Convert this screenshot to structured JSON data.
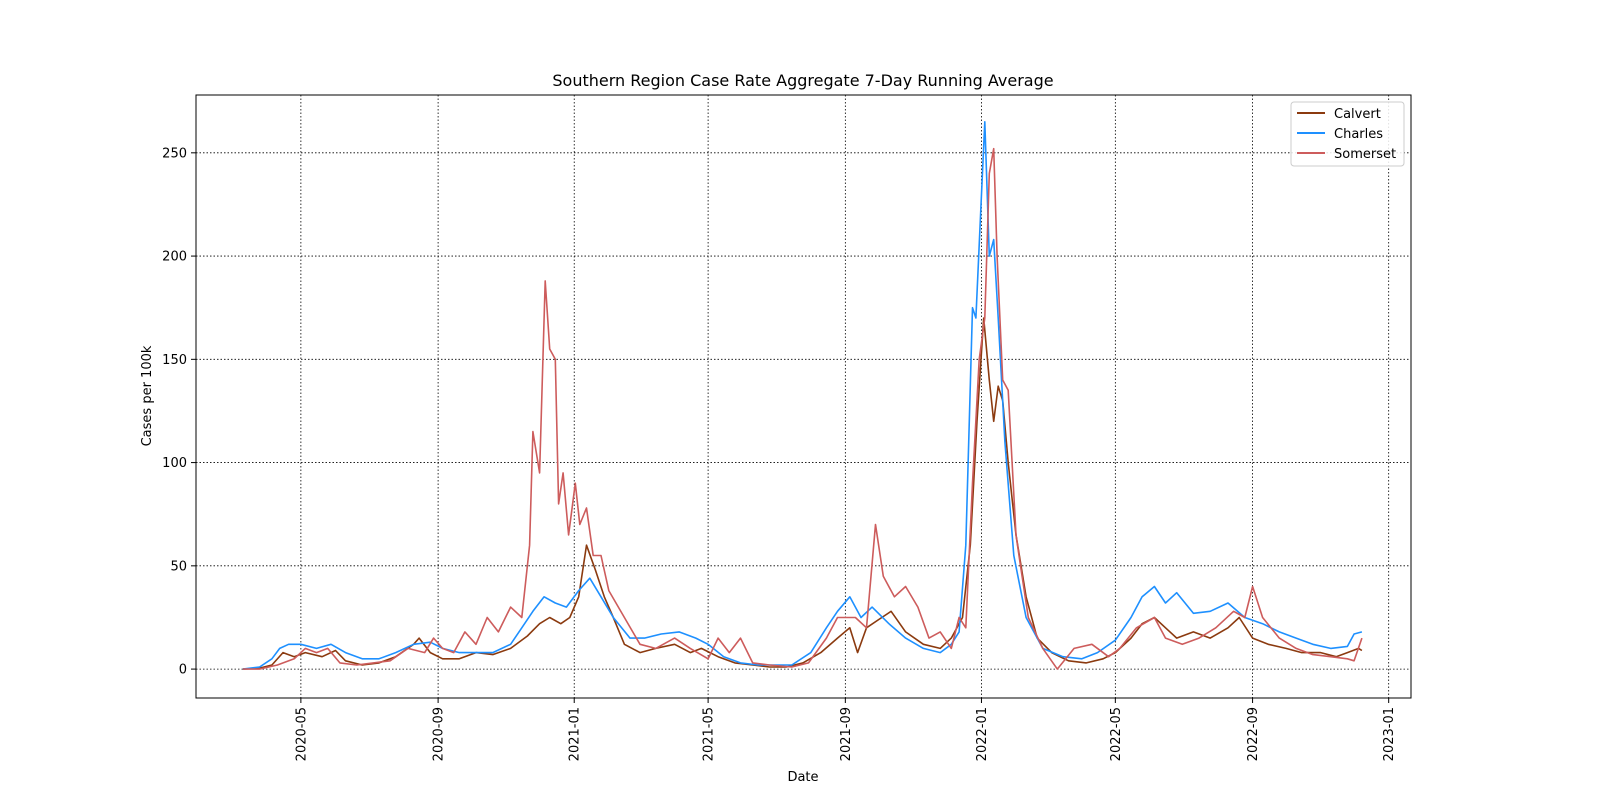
{
  "chart_data": {
    "type": "line",
    "title": "Southern Region Case Rate Aggregate 7-Day Running Average",
    "xlabel": "Date",
    "ylabel": "Cases per 100k",
    "xlim": [
      "2020-01-28",
      "2023-01-21"
    ],
    "ylim": [
      -14,
      278
    ],
    "x_ticks": [
      "2020-05",
      "2020-09",
      "2021-01",
      "2021-05",
      "2021-09",
      "2022-01",
      "2022-05",
      "2022-09",
      "2023-01"
    ],
    "y_ticks": [
      0,
      50,
      100,
      150,
      200,
      250
    ],
    "grid": true,
    "legend_position": "top-right",
    "series": [
      {
        "name": "Calvert",
        "color": "#8B3A0F",
        "points": [
          [
            "2020-03-10",
            0
          ],
          [
            "2020-03-25",
            0.5
          ],
          [
            "2020-04-05",
            2
          ],
          [
            "2020-04-15",
            8
          ],
          [
            "2020-04-25",
            6
          ],
          [
            "2020-05-05",
            8
          ],
          [
            "2020-05-20",
            6
          ],
          [
            "2020-06-01",
            9
          ],
          [
            "2020-06-10",
            4
          ],
          [
            "2020-06-25",
            2
          ],
          [
            "2020-07-10",
            3
          ],
          [
            "2020-07-25",
            6
          ],
          [
            "2020-08-10",
            12
          ],
          [
            "2020-08-15",
            15
          ],
          [
            "2020-08-25",
            8
          ],
          [
            "2020-09-05",
            5
          ],
          [
            "2020-09-20",
            5
          ],
          [
            "2020-10-05",
            8
          ],
          [
            "2020-10-20",
            7
          ],
          [
            "2020-11-05",
            10
          ],
          [
            "2020-11-20",
            16
          ],
          [
            "2020-12-01",
            22
          ],
          [
            "2020-12-10",
            25
          ],
          [
            "2020-12-20",
            22
          ],
          [
            "2020-12-28",
            25
          ],
          [
            "2021-01-05",
            35
          ],
          [
            "2021-01-12",
            60
          ],
          [
            "2021-01-20",
            48
          ],
          [
            "2021-01-28",
            35
          ],
          [
            "2021-02-05",
            25
          ],
          [
            "2021-02-15",
            12
          ],
          [
            "2021-03-01",
            8
          ],
          [
            "2021-03-15",
            10
          ],
          [
            "2021-04-01",
            12
          ],
          [
            "2021-04-15",
            8
          ],
          [
            "2021-04-25",
            10
          ],
          [
            "2021-05-10",
            6
          ],
          [
            "2021-05-25",
            3
          ],
          [
            "2021-06-10",
            2
          ],
          [
            "2021-06-25",
            1
          ],
          [
            "2021-07-10",
            1
          ],
          [
            "2021-07-25",
            3
          ],
          [
            "2021-08-10",
            8
          ],
          [
            "2021-08-25",
            15
          ],
          [
            "2021-09-05",
            20
          ],
          [
            "2021-09-12",
            8
          ],
          [
            "2021-09-20",
            20
          ],
          [
            "2021-10-01",
            24
          ],
          [
            "2021-10-12",
            28
          ],
          [
            "2021-10-25",
            18
          ],
          [
            "2021-11-10",
            12
          ],
          [
            "2021-11-25",
            10
          ],
          [
            "2021-12-05",
            15
          ],
          [
            "2021-12-15",
            25
          ],
          [
            "2021-12-22",
            60
          ],
          [
            "2021-12-28",
            120
          ],
          [
            "2022-01-03",
            170
          ],
          [
            "2022-01-08",
            140
          ],
          [
            "2022-01-12",
            120
          ],
          [
            "2022-01-16",
            137
          ],
          [
            "2022-01-20",
            130
          ],
          [
            "2022-01-25",
            100
          ],
          [
            "2022-02-01",
            65
          ],
          [
            "2022-02-10",
            35
          ],
          [
            "2022-02-20",
            15
          ],
          [
            "2022-03-05",
            8
          ],
          [
            "2022-03-20",
            4
          ],
          [
            "2022-04-05",
            3
          ],
          [
            "2022-04-20",
            5
          ],
          [
            "2022-05-01",
            8
          ],
          [
            "2022-05-15",
            15
          ],
          [
            "2022-05-25",
            22
          ],
          [
            "2022-06-05",
            25
          ],
          [
            "2022-06-15",
            20
          ],
          [
            "2022-06-25",
            15
          ],
          [
            "2022-07-10",
            18
          ],
          [
            "2022-07-25",
            15
          ],
          [
            "2022-08-10",
            20
          ],
          [
            "2022-08-20",
            25
          ],
          [
            "2022-09-01",
            15
          ],
          [
            "2022-09-15",
            12
          ],
          [
            "2022-10-01",
            10
          ],
          [
            "2022-10-15",
            8
          ],
          [
            "2022-11-01",
            8
          ],
          [
            "2022-11-15",
            6
          ],
          [
            "2022-11-25",
            8
          ],
          [
            "2022-12-05",
            10
          ],
          [
            "2022-12-08",
            9
          ]
        ]
      },
      {
        "name": "Charles",
        "color": "#1E90FF",
        "points": [
          [
            "2020-03-10",
            0
          ],
          [
            "2020-03-25",
            1
          ],
          [
            "2020-04-05",
            5
          ],
          [
            "2020-04-12",
            10
          ],
          [
            "2020-04-20",
            12
          ],
          [
            "2020-05-01",
            12
          ],
          [
            "2020-05-15",
            10
          ],
          [
            "2020-05-28",
            12
          ],
          [
            "2020-06-10",
            8
          ],
          [
            "2020-06-25",
            5
          ],
          [
            "2020-07-10",
            5
          ],
          [
            "2020-07-25",
            8
          ],
          [
            "2020-08-10",
            12
          ],
          [
            "2020-08-25",
            13
          ],
          [
            "2020-09-05",
            10
          ],
          [
            "2020-09-20",
            8
          ],
          [
            "2020-10-05",
            8
          ],
          [
            "2020-10-20",
            8
          ],
          [
            "2020-11-05",
            12
          ],
          [
            "2020-11-15",
            20
          ],
          [
            "2020-11-25",
            28
          ],
          [
            "2020-12-05",
            35
          ],
          [
            "2020-12-15",
            32
          ],
          [
            "2020-12-25",
            30
          ],
          [
            "2021-01-05",
            38
          ],
          [
            "2021-01-15",
            44
          ],
          [
            "2021-01-25",
            35
          ],
          [
            "2021-02-05",
            25
          ],
          [
            "2021-02-20",
            15
          ],
          [
            "2021-03-05",
            15
          ],
          [
            "2021-03-20",
            17
          ],
          [
            "2021-04-05",
            18
          ],
          [
            "2021-04-20",
            15
          ],
          [
            "2021-05-01",
            12
          ],
          [
            "2021-05-15",
            6
          ],
          [
            "2021-05-30",
            3
          ],
          [
            "2021-06-15",
            2
          ],
          [
            "2021-07-01",
            2
          ],
          [
            "2021-07-15",
            2
          ],
          [
            "2021-08-01",
            8
          ],
          [
            "2021-08-15",
            20
          ],
          [
            "2021-08-25",
            28
          ],
          [
            "2021-09-05",
            35
          ],
          [
            "2021-09-15",
            25
          ],
          [
            "2021-09-25",
            30
          ],
          [
            "2021-10-10",
            22
          ],
          [
            "2021-10-25",
            15
          ],
          [
            "2021-11-10",
            10
          ],
          [
            "2021-11-25",
            8
          ],
          [
            "2021-12-05",
            12
          ],
          [
            "2021-12-12",
            18
          ],
          [
            "2021-12-18",
            60
          ],
          [
            "2021-12-24",
            175
          ],
          [
            "2021-12-27",
            170
          ],
          [
            "2022-01-01",
            230
          ],
          [
            "2022-01-04",
            265
          ],
          [
            "2022-01-08",
            200
          ],
          [
            "2022-01-12",
            208
          ],
          [
            "2022-01-16",
            170
          ],
          [
            "2022-01-22",
            110
          ],
          [
            "2022-01-30",
            55
          ],
          [
            "2022-02-10",
            25
          ],
          [
            "2022-02-25",
            10
          ],
          [
            "2022-03-15",
            6
          ],
          [
            "2022-04-01",
            5
          ],
          [
            "2022-04-15",
            8
          ],
          [
            "2022-05-01",
            14
          ],
          [
            "2022-05-15",
            25
          ],
          [
            "2022-05-25",
            35
          ],
          [
            "2022-06-05",
            40
          ],
          [
            "2022-06-15",
            32
          ],
          [
            "2022-06-25",
            37
          ],
          [
            "2022-07-10",
            27
          ],
          [
            "2022-07-25",
            28
          ],
          [
            "2022-08-10",
            32
          ],
          [
            "2022-08-25",
            25
          ],
          [
            "2022-09-10",
            22
          ],
          [
            "2022-09-25",
            18
          ],
          [
            "2022-10-10",
            15
          ],
          [
            "2022-10-25",
            12
          ],
          [
            "2022-11-10",
            10
          ],
          [
            "2022-11-25",
            11
          ],
          [
            "2022-12-01",
            17
          ],
          [
            "2022-12-08",
            18
          ]
        ]
      },
      {
        "name": "Somerset",
        "color": "#CD5C5C",
        "points": [
          [
            "2020-03-10",
            0
          ],
          [
            "2020-03-25",
            0
          ],
          [
            "2020-04-10",
            2
          ],
          [
            "2020-04-25",
            5
          ],
          [
            "2020-05-05",
            10
          ],
          [
            "2020-05-15",
            8
          ],
          [
            "2020-05-25",
            10
          ],
          [
            "2020-06-05",
            3
          ],
          [
            "2020-06-20",
            2
          ],
          [
            "2020-07-05",
            3
          ],
          [
            "2020-07-20",
            4
          ],
          [
            "2020-08-05",
            10
          ],
          [
            "2020-08-20",
            8
          ],
          [
            "2020-08-28",
            15
          ],
          [
            "2020-09-05",
            10
          ],
          [
            "2020-09-15",
            8
          ],
          [
            "2020-09-25",
            18
          ],
          [
            "2020-10-05",
            12
          ],
          [
            "2020-10-15",
            25
          ],
          [
            "2020-10-25",
            18
          ],
          [
            "2020-11-05",
            30
          ],
          [
            "2020-11-15",
            25
          ],
          [
            "2020-11-22",
            60
          ],
          [
            "2020-11-25",
            115
          ],
          [
            "2020-12-01",
            95
          ],
          [
            "2020-12-06",
            188
          ],
          [
            "2020-12-10",
            155
          ],
          [
            "2020-12-15",
            150
          ],
          [
            "2020-12-18",
            80
          ],
          [
            "2020-12-22",
            95
          ],
          [
            "2020-12-27",
            65
          ],
          [
            "2021-01-02",
            90
          ],
          [
            "2021-01-06",
            70
          ],
          [
            "2021-01-12",
            78
          ],
          [
            "2021-01-18",
            55
          ],
          [
            "2021-01-25",
            55
          ],
          [
            "2021-02-01",
            38
          ],
          [
            "2021-02-15",
            25
          ],
          [
            "2021-03-01",
            12
          ],
          [
            "2021-03-15",
            10
          ],
          [
            "2021-04-01",
            15
          ],
          [
            "2021-04-15",
            10
          ],
          [
            "2021-05-01",
            5
          ],
          [
            "2021-05-10",
            15
          ],
          [
            "2021-05-20",
            8
          ],
          [
            "2021-05-30",
            15
          ],
          [
            "2021-06-10",
            3
          ],
          [
            "2021-06-25",
            2
          ],
          [
            "2021-07-15",
            1
          ],
          [
            "2021-07-30",
            3
          ],
          [
            "2021-08-15",
            15
          ],
          [
            "2021-08-25",
            25
          ],
          [
            "2021-09-10",
            25
          ],
          [
            "2021-09-20",
            20
          ],
          [
            "2021-09-28",
            70
          ],
          [
            "2021-10-05",
            45
          ],
          [
            "2021-10-15",
            35
          ],
          [
            "2021-10-25",
            40
          ],
          [
            "2021-11-05",
            30
          ],
          [
            "2021-11-15",
            15
          ],
          [
            "2021-11-25",
            18
          ],
          [
            "2021-12-05",
            10
          ],
          [
            "2021-12-12",
            25
          ],
          [
            "2021-12-18",
            20
          ],
          [
            "2021-12-24",
            90
          ],
          [
            "2021-12-30",
            150
          ],
          [
            "2022-01-04",
            170
          ],
          [
            "2022-01-08",
            240
          ],
          [
            "2022-01-12",
            252
          ],
          [
            "2022-01-15",
            200
          ],
          [
            "2022-01-20",
            140
          ],
          [
            "2022-01-25",
            135
          ],
          [
            "2022-02-01",
            65
          ],
          [
            "2022-02-05",
            50
          ],
          [
            "2022-02-12",
            25
          ],
          [
            "2022-02-25",
            10
          ],
          [
            "2022-03-10",
            0
          ],
          [
            "2022-03-25",
            10
          ],
          [
            "2022-04-10",
            12
          ],
          [
            "2022-04-25",
            6
          ],
          [
            "2022-05-05",
            10
          ],
          [
            "2022-05-20",
            20
          ],
          [
            "2022-06-05",
            25
          ],
          [
            "2022-06-15",
            15
          ],
          [
            "2022-06-30",
            12
          ],
          [
            "2022-07-15",
            15
          ],
          [
            "2022-07-30",
            20
          ],
          [
            "2022-08-15",
            28
          ],
          [
            "2022-08-25",
            25
          ],
          [
            "2022-09-01",
            40
          ],
          [
            "2022-09-10",
            25
          ],
          [
            "2022-09-25",
            15
          ],
          [
            "2022-10-10",
            10
          ],
          [
            "2022-10-25",
            7
          ],
          [
            "2022-11-10",
            6
          ],
          [
            "2022-11-25",
            5
          ],
          [
            "2022-12-01",
            4
          ],
          [
            "2022-12-08",
            15
          ]
        ]
      }
    ]
  }
}
